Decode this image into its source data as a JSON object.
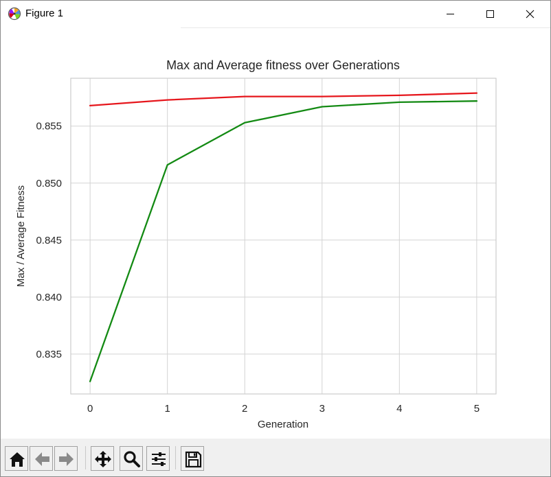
{
  "window": {
    "title": "Figure 1"
  },
  "toolbar": {
    "buttons": [
      "home-icon",
      "back-icon",
      "forward-icon",
      "pan-icon",
      "zoom-icon",
      "configure-subplots-icon",
      "save-icon"
    ]
  },
  "colors": {
    "max_line": "#e6161c",
    "avg_line": "#138a13",
    "grid": "#d3d3d3",
    "axes_edge": "#cccccc",
    "text": "#262626"
  },
  "chart_data": {
    "type": "line",
    "title": "Max and Average fitness over Generations",
    "xlabel": "Generation",
    "ylabel": "Max / Average Fitness",
    "x": [
      0,
      1,
      2,
      3,
      4,
      5
    ],
    "xlim": [
      -0.25,
      5.25
    ],
    "ylim": [
      0.8315,
      0.8592
    ],
    "xticks": [
      0,
      1,
      2,
      3,
      4,
      5
    ],
    "xtick_labels": [
      "0",
      "1",
      "2",
      "3",
      "4",
      "5"
    ],
    "yticks": [
      0.835,
      0.84,
      0.845,
      0.85,
      0.855
    ],
    "ytick_labels": [
      "0.835",
      "0.840",
      "0.845",
      "0.850",
      "0.855"
    ],
    "grid": true,
    "series": [
      {
        "color": "#e6161c",
        "values": [
          0.8568,
          0.8573,
          0.8576,
          0.8576,
          0.8577,
          0.8579
        ]
      },
      {
        "color": "#138a13",
        "values": [
          0.8326,
          0.8516,
          0.8553,
          0.8567,
          0.8571,
          0.8572
        ]
      }
    ]
  }
}
